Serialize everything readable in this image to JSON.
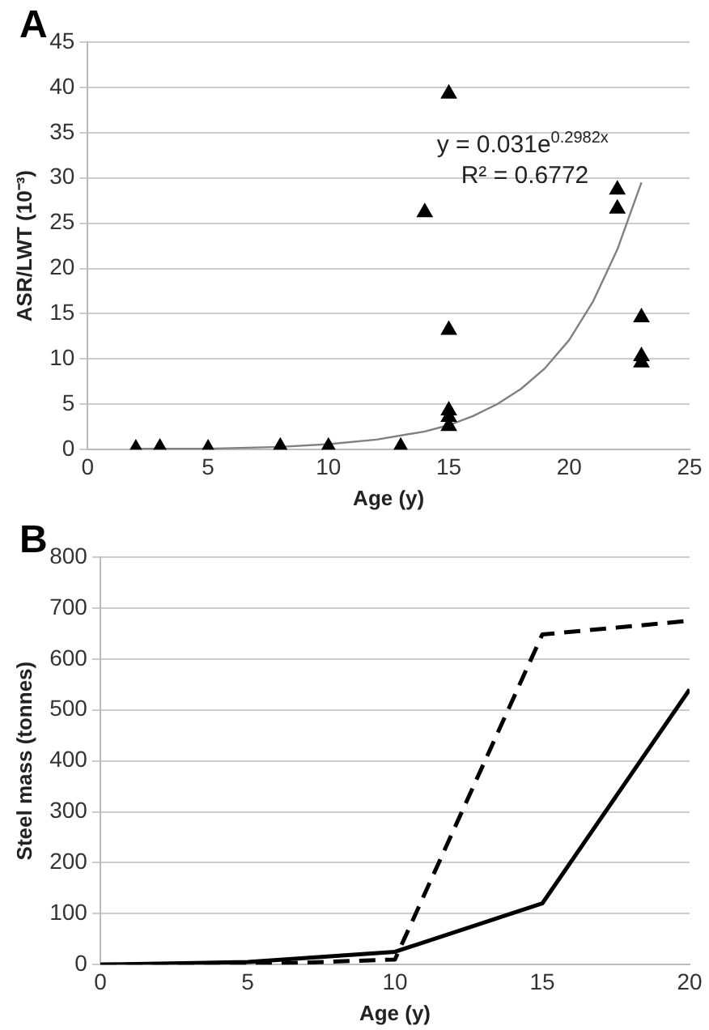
{
  "chart_data": [
    {
      "type": "scatter",
      "title": "A",
      "xlabel": "Age (y)",
      "ylabel": "ASR/LWT (10⁻³)",
      "xlim": [
        0,
        25
      ],
      "xticks": [
        0,
        5,
        10,
        15,
        20,
        25
      ],
      "ylim": [
        0,
        45
      ],
      "yticks": [
        0,
        5,
        10,
        15,
        20,
        25,
        30,
        35,
        40,
        45
      ],
      "grid": "y",
      "legend": false,
      "marker": "triangle",
      "annotations": [
        "y = 0.031e$^{0.2982x}$",
        "R² = 0.6772"
      ],
      "series": [
        {
          "color": "#000000",
          "x": [
            2,
            3,
            5,
            8,
            10,
            13,
            14,
            15,
            15,
            15,
            15,
            15,
            22,
            22,
            23,
            23,
            23
          ],
          "values": [
            0.1,
            0.2,
            0.1,
            0.3,
            0.3,
            0.3,
            26.2,
            39.3,
            13.2,
            4.3,
            3.6,
            2.6,
            28.7,
            26.6,
            14.6,
            10.3,
            9.6
          ]
        },
        {
          "type": "line",
          "marker": "none",
          "color": "#808080",
          "x": [
            2,
            5,
            8,
            10,
            12,
            14,
            15,
            16,
            17,
            18,
            19,
            20,
            21,
            22,
            23
          ],
          "values": [
            0.1,
            0.1,
            0.3,
            0.6,
            1.1,
            2.0,
            2.7,
            3.7,
            5.0,
            6.7,
            9.0,
            12.1,
            16.4,
            22.1,
            29.5
          ]
        }
      ]
    },
    {
      "type": "line",
      "title": "B",
      "xlabel": "Age (y)",
      "ylabel": "Steel mass (tonnes)",
      "xlim": [
        0,
        20
      ],
      "xticks": [
        0,
        5,
        10,
        15,
        20
      ],
      "ylim": [
        0,
        800
      ],
      "yticks": [
        0,
        100,
        200,
        300,
        400,
        500,
        600,
        700,
        800
      ],
      "grid": "y",
      "legend": false,
      "marker": "none",
      "x": [
        0,
        5,
        10,
        15,
        20
      ],
      "series": [
        {
          "color": "#000000",
          "line_style": "solid",
          "values": [
            0,
            5,
            25,
            120,
            540
          ]
        },
        {
          "color": "#000000",
          "line_style": "dashed",
          "values": [
            0,
            0,
            10,
            648,
            675
          ]
        }
      ]
    }
  ]
}
